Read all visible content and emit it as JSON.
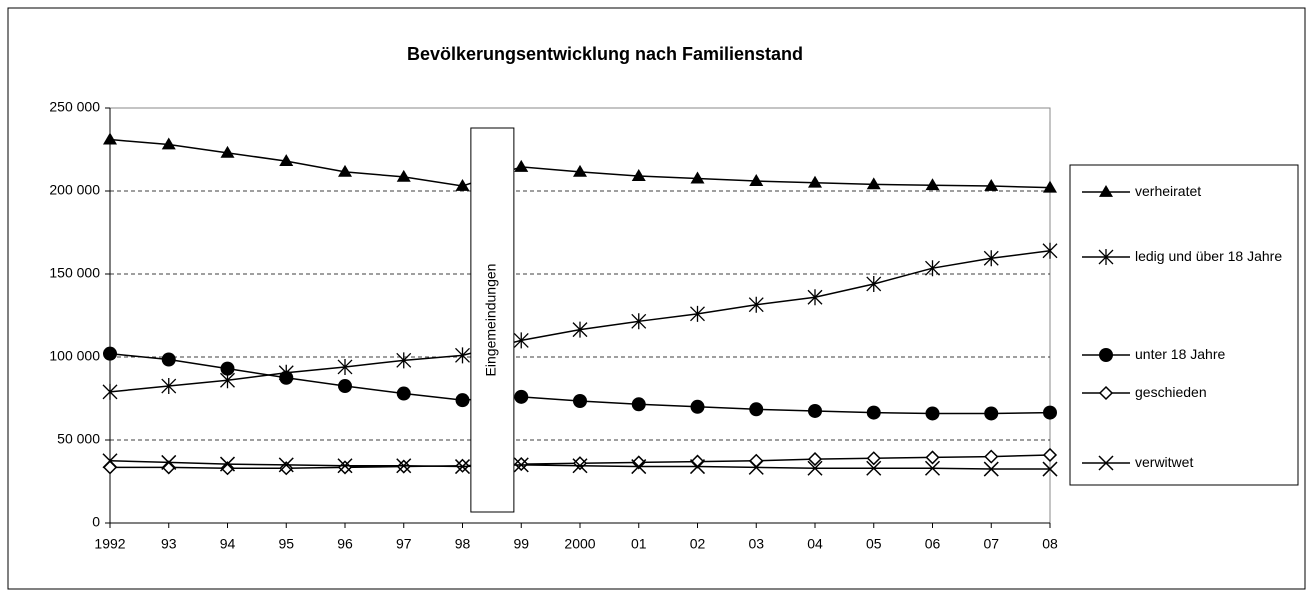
{
  "chart_data": {
    "type": "line",
    "title": "Bevölkerungsentwicklung nach Familienstand",
    "categories": [
      "1992",
      "93",
      "94",
      "95",
      "96",
      "97",
      "98",
      "99",
      "2000",
      "01",
      "02",
      "03",
      "04",
      "05",
      "06",
      "07",
      "08"
    ],
    "series": [
      {
        "name": "verheiratet",
        "color": "#000000",
        "marker": "triangle",
        "values": [
          231000,
          228000,
          223000,
          218000,
          211500,
          208500,
          203000,
          214500,
          211500,
          209000,
          207500,
          206000,
          205000,
          204000,
          203500,
          203000,
          202000
        ]
      },
      {
        "name": "ledig und über 18 Jahre",
        "color": "#000000",
        "marker": "asterisk",
        "values": [
          79000,
          82500,
          86000,
          90500,
          94000,
          98000,
          101000,
          110000,
          116500,
          121500,
          126000,
          131500,
          136000,
          144000,
          153500,
          159500,
          164000
        ]
      },
      {
        "name": "unter 18 Jahre",
        "color": "#000000",
        "marker": "circle",
        "values": [
          102000,
          98500,
          93000,
          87500,
          82500,
          78000,
          74000,
          76000,
          73500,
          71500,
          70000,
          68500,
          67500,
          66500,
          66000,
          66000,
          66500
        ]
      },
      {
        "name": "geschieden",
        "color": "#000000",
        "marker": "diamond",
        "values": [
          33500,
          33500,
          33000,
          33000,
          33500,
          34000,
          34500,
          35500,
          36000,
          36500,
          37000,
          37500,
          38500,
          39000,
          39500,
          40000,
          41000
        ]
      },
      {
        "name": "verwitwet",
        "color": "#000000",
        "marker": "x",
        "values": [
          37500,
          36500,
          35500,
          35000,
          34500,
          34500,
          34000,
          35000,
          34500,
          34000,
          34000,
          33500,
          33000,
          33000,
          33000,
          32500,
          32500
        ]
      }
    ],
    "ylim": [
      0,
      250000
    ],
    "yticks": [
      0,
      {
        "value": 50000,
        "label": "50 000"
      },
      {
        "value": 100000,
        "label": "100 000"
      },
      {
        "value": 150000,
        "label": "150 000"
      },
      {
        "value": 200000,
        "label": "200 000"
      },
      {
        "value": 250000,
        "label": "250 000"
      }
    ],
    "grid": true,
    "legend": "right",
    "annotations": [
      "Eingemeindungen"
    ]
  }
}
